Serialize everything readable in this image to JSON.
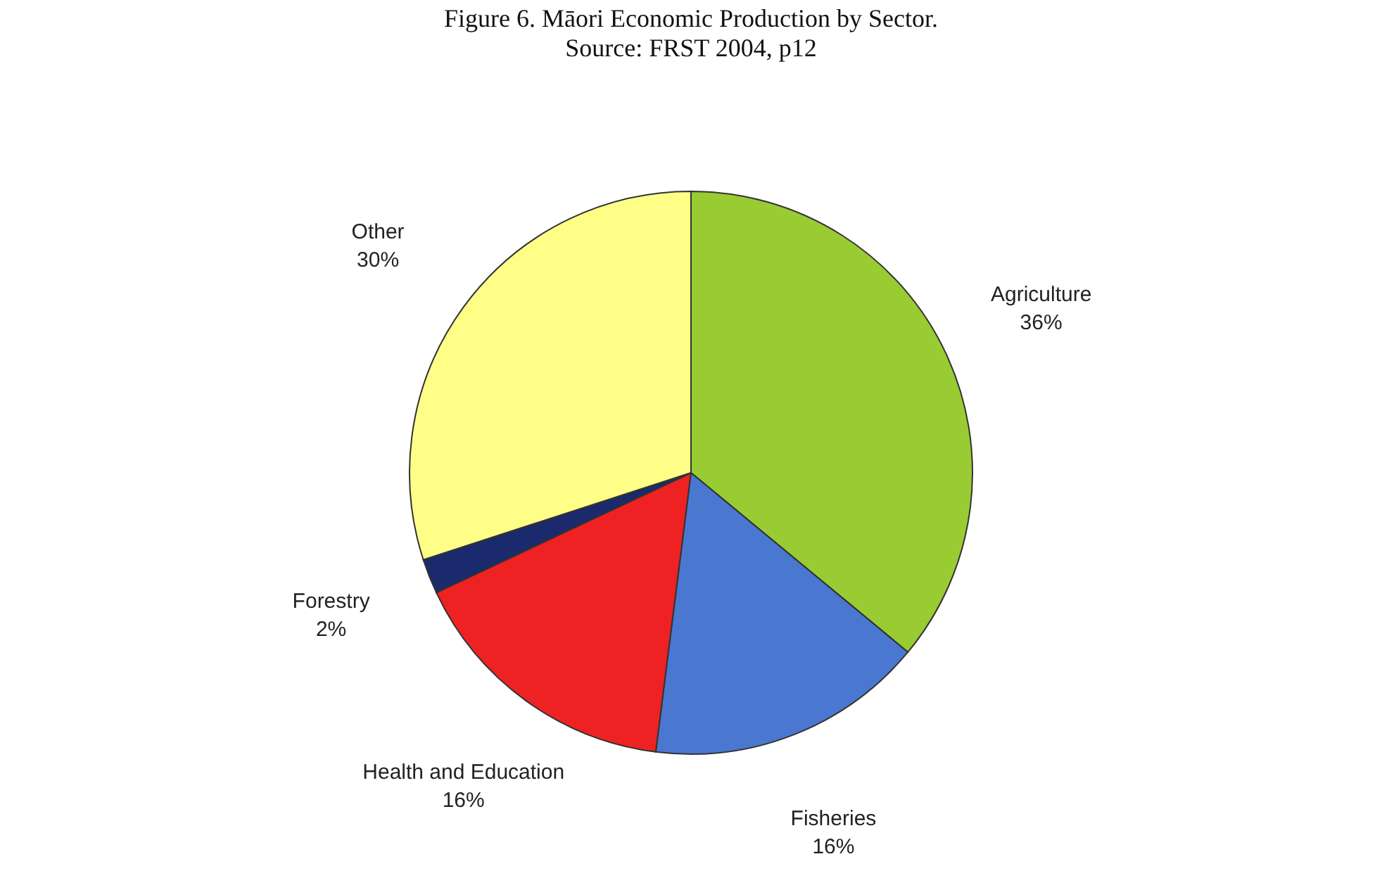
{
  "chart_data": {
    "type": "pie",
    "title": "Figure 6. Māori Economic Production by Sector.",
    "subtitle": "Source: FRST 2004, p12",
    "categories": [
      "Agriculture",
      "Fisheries",
      "Health and Education",
      "Forestry",
      "Other"
    ],
    "values": [
      36,
      16,
      16,
      2,
      30
    ],
    "value_labels": [
      "36%",
      "16%",
      "16%",
      "2%",
      "30%"
    ],
    "colors": [
      "#99cc33",
      "#4a78d0",
      "#ee2222",
      "#1a2a6c",
      "#ffff88"
    ]
  }
}
